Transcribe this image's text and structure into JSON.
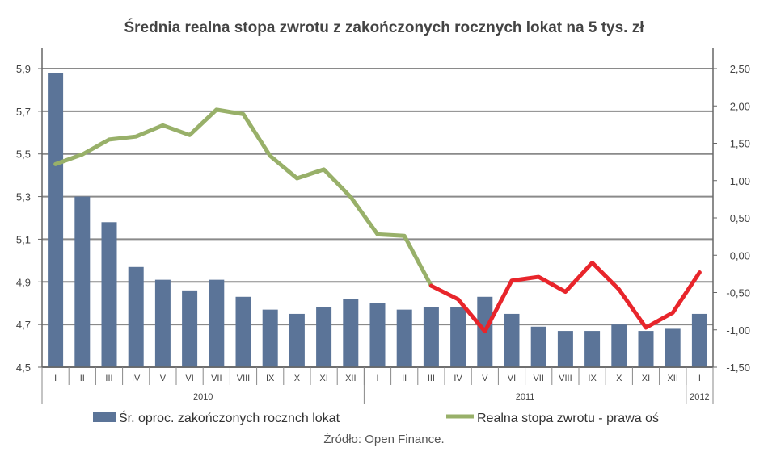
{
  "chart_data": {
    "type": "bar",
    "title": "Średnia realna stopa zwrotu z zakończonych rocznych lokat na 5 tys. zł",
    "source": "Źródło: Open Finance.",
    "categories": [
      "I",
      "II",
      "III",
      "IV",
      "V",
      "VI",
      "VII",
      "VIII",
      "IX",
      "X",
      "XI",
      "XII",
      "I",
      "II",
      "III",
      "IV",
      "V",
      "VI",
      "VII",
      "VIII",
      "IX",
      "X",
      "XI",
      "XII",
      "I"
    ],
    "groups": [
      {
        "label": "2010",
        "count": 12
      },
      {
        "label": "2011",
        "count": 12
      },
      {
        "label": "2012",
        "count": 1
      }
    ],
    "left_axis": {
      "min": 4.5,
      "max": 5.9,
      "ticks": [
        "4,5",
        "4,7",
        "4,9",
        "5,1",
        "5,3",
        "5,5",
        "5,7",
        "5,9"
      ]
    },
    "right_axis": {
      "min": -1.5,
      "max": 2.5,
      "ticks": [
        "-1,50",
        "-1,00",
        "-0,50",
        "0,00",
        "0,50",
        "1,00",
        "1,50",
        "2,00",
        "2,50"
      ]
    },
    "series": [
      {
        "name": "Śr. oproc. zakończonych rocznch lokat",
        "type": "bar",
        "axis": "left",
        "color": "#5b7498",
        "values": [
          5.88,
          5.3,
          5.18,
          4.97,
          4.91,
          4.86,
          4.91,
          4.83,
          4.77,
          4.75,
          4.78,
          4.82,
          4.8,
          4.77,
          4.78,
          4.78,
          4.83,
          4.75,
          4.69,
          4.67,
          4.67,
          4.7,
          4.67,
          4.68,
          4.75
        ]
      },
      {
        "name": "Realna stopa zwrotu - prawa oś",
        "type": "line",
        "axis": "right",
        "color": "#98b069",
        "highlight_color": "#e8252b",
        "highlight_from_index": 14,
        "values": [
          1.22,
          1.35,
          1.55,
          1.59,
          1.74,
          1.61,
          1.95,
          1.89,
          1.33,
          1.03,
          1.15,
          0.78,
          0.28,
          0.26,
          -0.41,
          -0.59,
          -1.02,
          -0.34,
          -0.29,
          -0.49,
          -0.1,
          -0.46,
          -0.97,
          -0.77,
          -0.23
        ]
      }
    ],
    "legend_position": "bottom",
    "grid": true
  }
}
